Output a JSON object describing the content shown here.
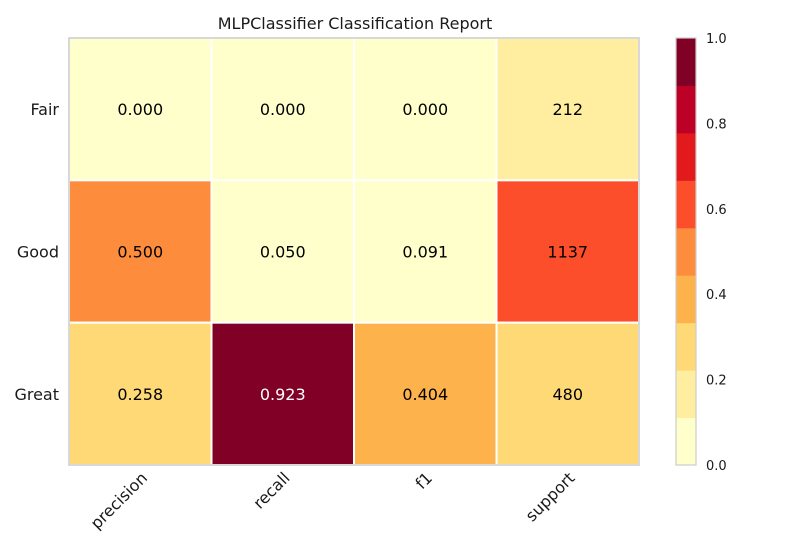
{
  "chart_data": {
    "type": "heatmap",
    "title": "MLPClassifier Classification Report",
    "xlabel": "",
    "ylabel": "",
    "columns": [
      "precision",
      "recall",
      "f1",
      "support"
    ],
    "rows": [
      "Fair",
      "Good",
      "Great"
    ],
    "values": [
      [
        0.0,
        0.0,
        0.0,
        212
      ],
      [
        0.5,
        0.05,
        0.091,
        1137
      ],
      [
        0.258,
        0.923,
        0.404,
        480
      ]
    ],
    "cell_labels": [
      [
        "0.000",
        "0.000",
        "0.000",
        "212"
      ],
      [
        "0.500",
        "0.050",
        "0.091",
        "1137"
      ],
      [
        "0.258",
        "0.923",
        "0.404",
        "480"
      ]
    ],
    "color_fractions": [
      [
        0.0,
        0.0,
        0.0,
        0.186
      ],
      [
        0.5,
        0.05,
        0.091,
        0.618
      ],
      [
        0.258,
        0.923,
        0.404,
        0.25
      ]
    ],
    "colorbar": {
      "range": [
        0.0,
        1.0
      ],
      "ticks": [
        "0.0",
        "0.2",
        "0.4",
        "0.6",
        "0.8",
        "1.0"
      ],
      "colors": [
        "#ffffcc",
        "#ffeda0",
        "#fed976",
        "#feb24c",
        "#fd8d3c",
        "#fc4e2a",
        "#e31a1c",
        "#bd0026",
        "#800026"
      ]
    },
    "grid": false,
    "legend": "colorbar-right"
  }
}
